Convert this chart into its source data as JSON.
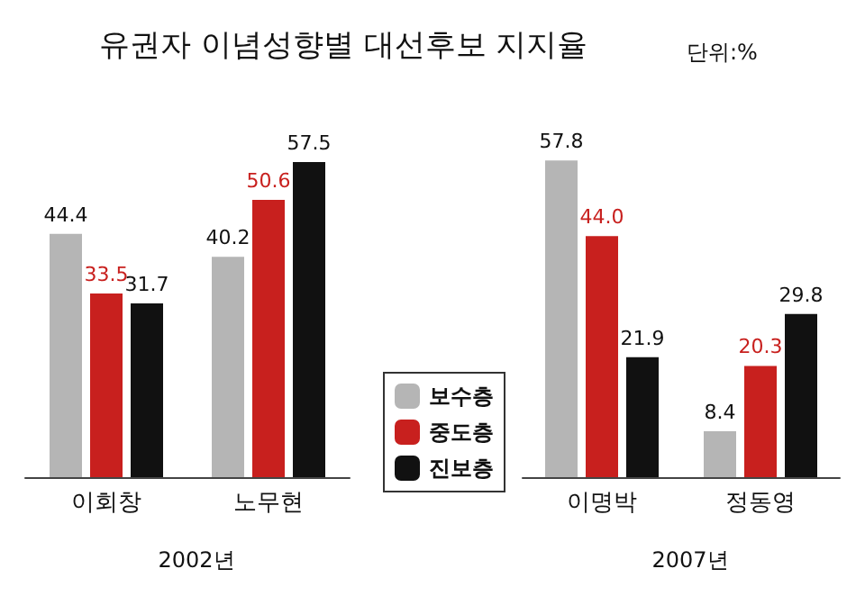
{
  "chart_data": {
    "type": "bar",
    "title": "유권자 이념성향별 대선후보 지지율",
    "subtitle": "단위:%",
    "categories": [
      "이회창",
      "노무현",
      "이명박",
      "정동영"
    ],
    "series": [
      {
        "name": "보수층",
        "color": "#b5b5b5",
        "values": [
          44.4,
          40.2,
          57.8,
          8.4
        ],
        "value_labels": [
          "44.4",
          "40.2",
          "57.8",
          "8.4"
        ]
      },
      {
        "name": "중도층",
        "color": "#c8201e",
        "values": [
          33.5,
          50.6,
          44.0,
          20.3
        ],
        "value_labels": [
          "33.5",
          "50.6",
          "44.0",
          "20.3"
        ]
      },
      {
        "name": "진보층",
        "color": "#111111",
        "values": [
          31.7,
          57.5,
          21.9,
          29.8
        ],
        "value_labels": [
          "31.7",
          "57.5",
          "21.9",
          "29.8"
        ]
      }
    ],
    "annotations": [
      "2002년",
      "2007년"
    ],
    "legend": "bottom"
  }
}
